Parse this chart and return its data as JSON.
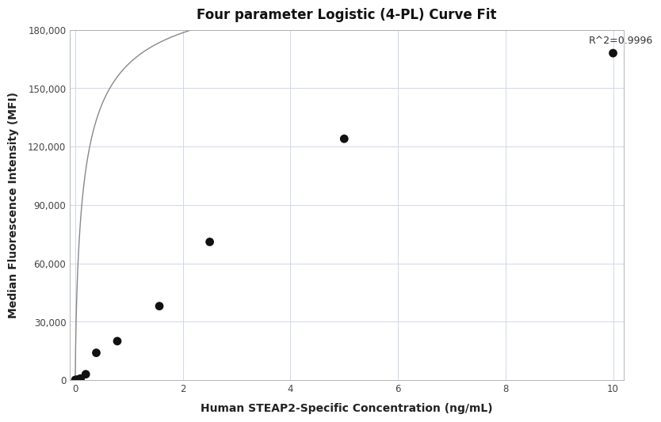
{
  "title": "Four parameter Logistic (4-PL) Curve Fit",
  "xlabel": "Human STEAP2-Specific Concentration (ng/mL)",
  "ylabel": "Median Fluorescence Intensity (MFI)",
  "scatter_x": [
    0.0,
    0.049,
    0.098,
    0.195,
    0.39,
    0.781,
    1.563,
    2.5,
    5.0,
    10.0
  ],
  "scatter_y": [
    100,
    300,
    800,
    3000,
    14000,
    20000,
    38000,
    71000,
    124000,
    168000
  ],
  "r_squared": "R^2=0.9996",
  "xlim": [
    -0.1,
    10.2
  ],
  "ylim": [
    0,
    180000
  ],
  "xticks": [
    0,
    2,
    4,
    6,
    8,
    10
  ],
  "yticks": [
    0,
    30000,
    60000,
    90000,
    120000,
    150000,
    180000
  ],
  "scatter_color": "#111111",
  "line_color": "#888888",
  "grid_color": "#d0d8e8",
  "background_color": "#ffffff",
  "title_fontsize": 12,
  "label_fontsize": 10,
  "annotation_fontsize": 9,
  "4pl_A": 100,
  "4pl_B": 0.72,
  "4pl_C": 0.18,
  "4pl_D": 210000
}
